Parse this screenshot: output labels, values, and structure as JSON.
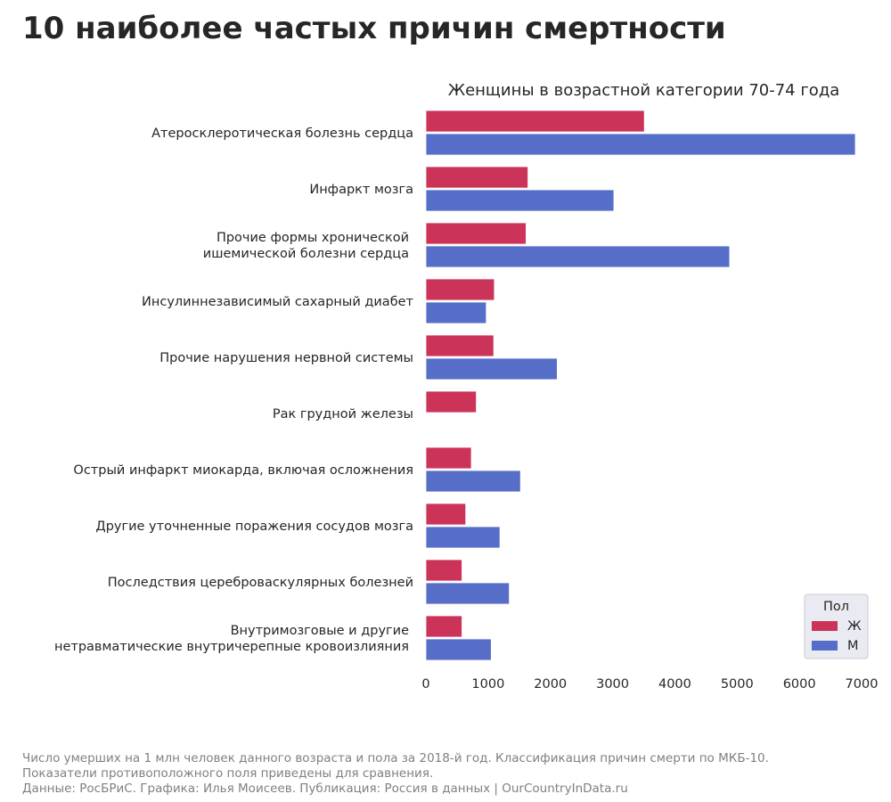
{
  "title": "10 наиболее частых причин смертности",
  "subtitle": "Женщины в возрастной категории 70-74 года",
  "footer": {
    "line1": "Число умерших на 1 млн человек данного возраста и пола за 2018-й год. Классификация причин смерти по МКБ-10.",
    "line2": "Показатели противоположного поля приведены для сравнения.",
    "line3": "Данные: РосБРиС. Графика: Илья Моисеев. Публикация: Россия в данных | OurCountryInData.ru"
  },
  "colors": {
    "female": "#cc3359",
    "male": "#576ec9"
  },
  "chart_data": {
    "type": "bar",
    "orientation": "horizontal",
    "categories": [
      [
        "Атеросклеротическая болезнь сердца"
      ],
      [
        "Инфаркт мозга"
      ],
      [
        "Прочие формы хронической",
        "ишемической болезни сердца"
      ],
      [
        "Инсулиннезависимый сахарный диабет"
      ],
      [
        "Прочие нарушения нервной системы"
      ],
      [
        "Рак грудной железы"
      ],
      [
        "Острый инфаркт миокарда, включая осложнения"
      ],
      [
        "Другие уточненные поражения сосудов мозга"
      ],
      [
        "Последствия цереброваскулярных болезней"
      ],
      [
        "Внутримозговые и другие",
        "нетравматические внутричерепные кровоизлияния"
      ]
    ],
    "series": [
      {
        "name": "Ж",
        "color": "#cc3359",
        "values": [
          3510,
          1640,
          1610,
          1100,
          1090,
          810,
          730,
          640,
          580,
          580
        ]
      },
      {
        "name": "М",
        "color": "#576ec9",
        "values": [
          6900,
          3020,
          4880,
          970,
          2110,
          null,
          1520,
          1190,
          1340,
          1050
        ]
      }
    ],
    "xlim": [
      0,
      7000
    ],
    "xticks": [
      0,
      1000,
      2000,
      3000,
      4000,
      5000,
      6000,
      7000
    ],
    "grid": false,
    "legend": {
      "title": "Пол",
      "placement": "lower-right"
    }
  }
}
